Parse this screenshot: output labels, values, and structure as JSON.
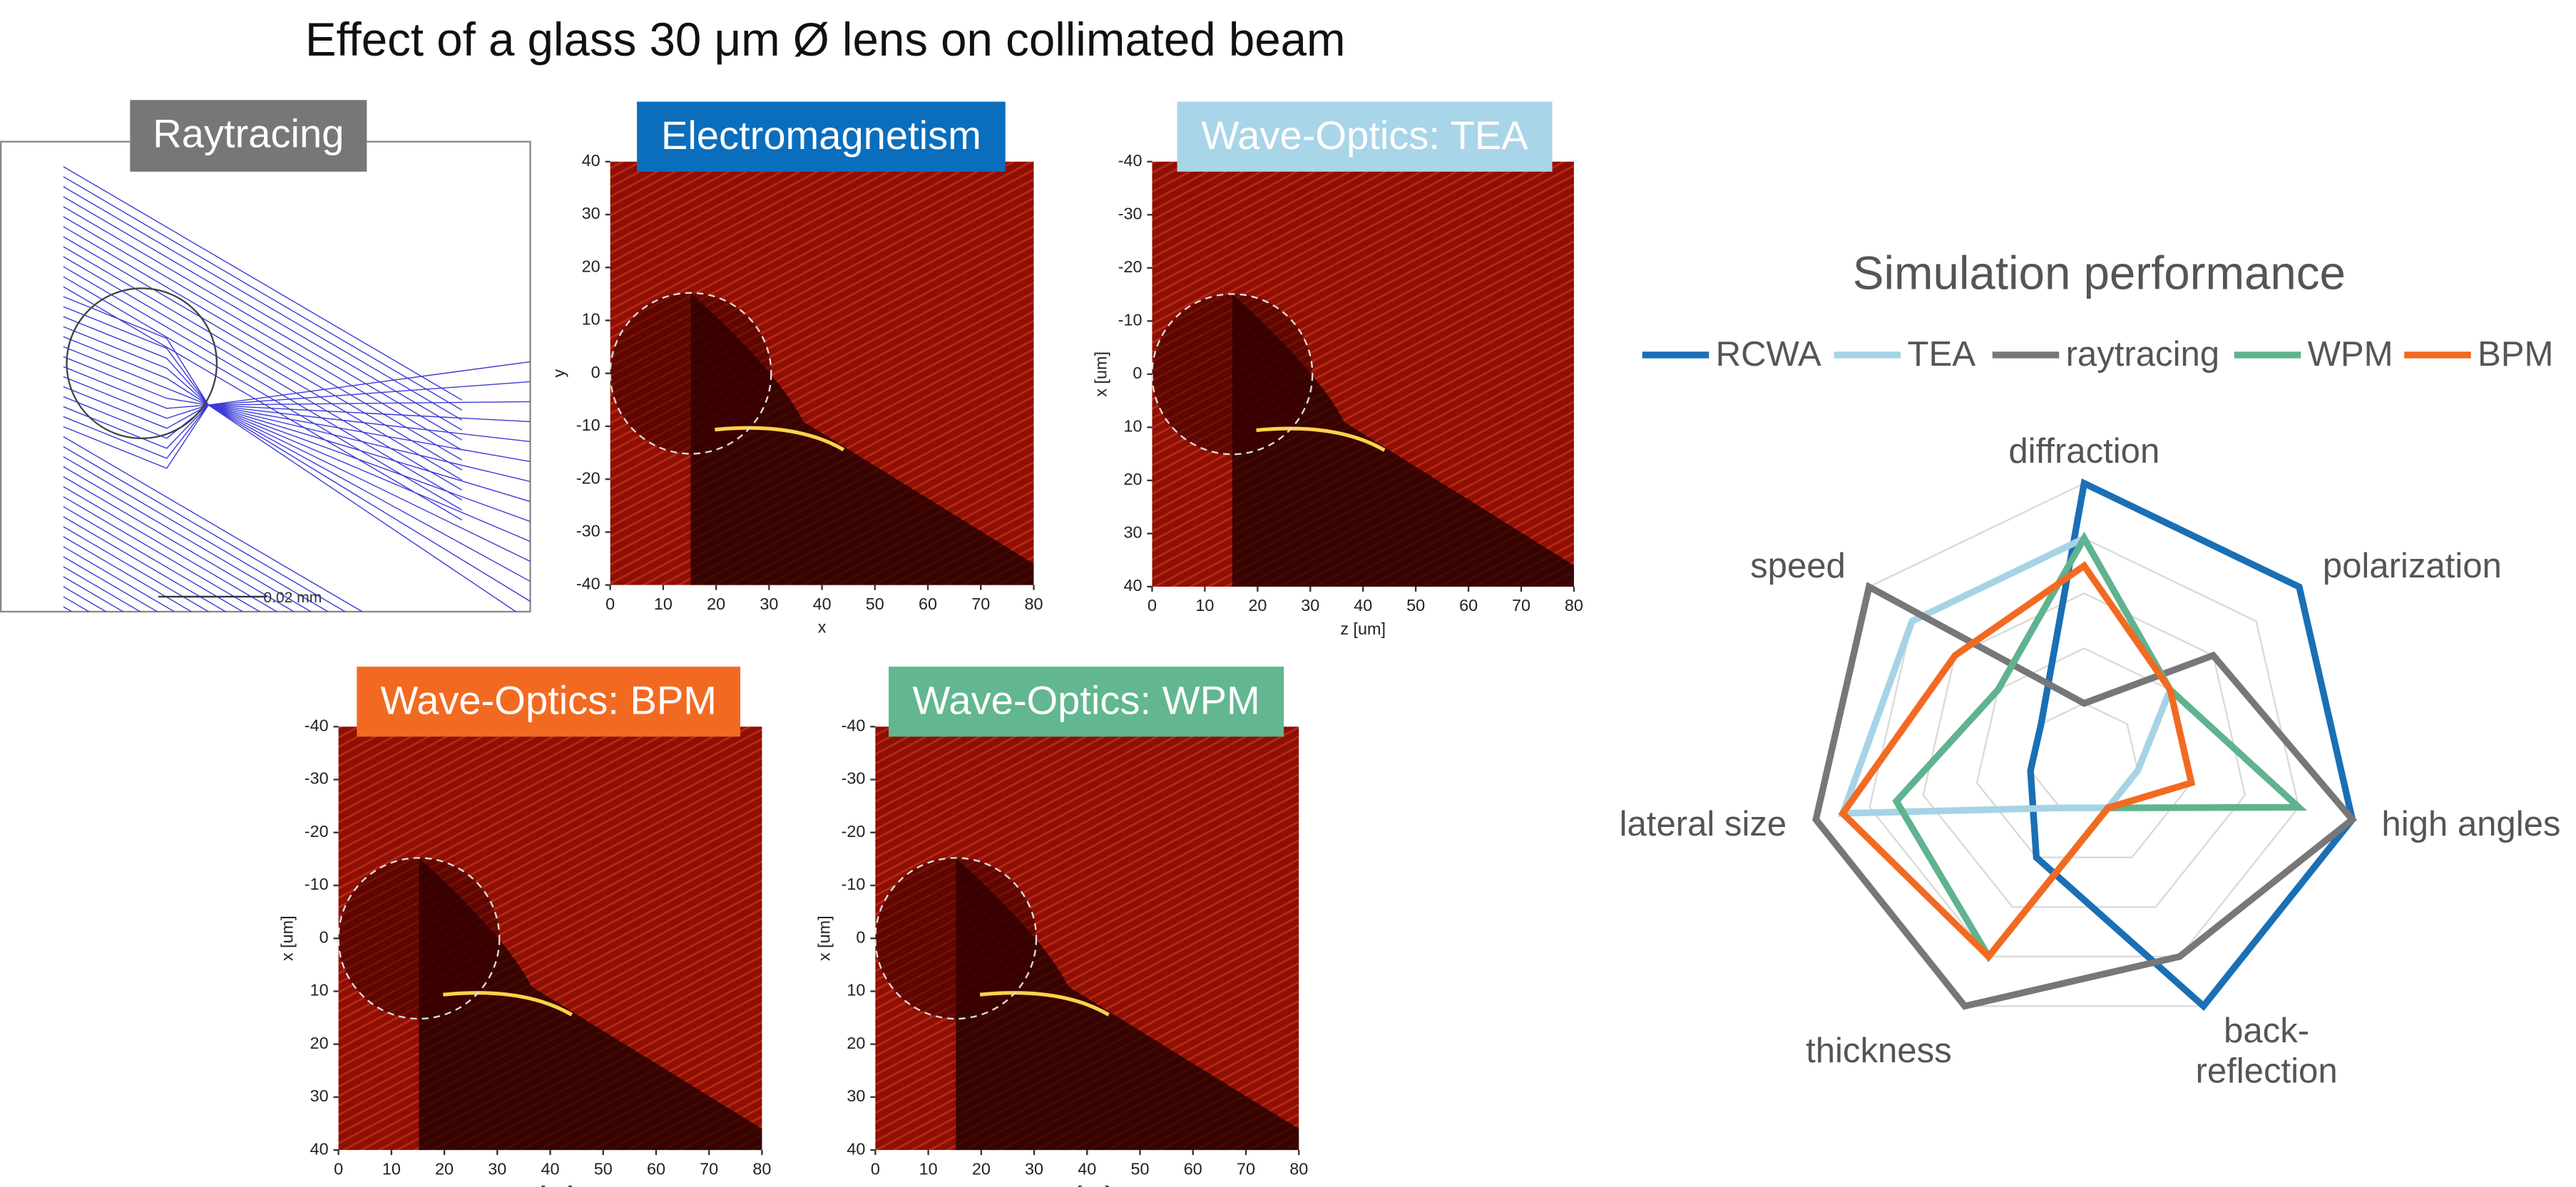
{
  "title": "Effect of a glass 30 μm Ø lens on collimated beam",
  "raytracing": {
    "label": "Raytracing",
    "scale_bar": "0.02 mm"
  },
  "panels": [
    {
      "label": "Electromagnetism",
      "color": "#0a6ebd",
      "xlabel": "x",
      "ylabel": "y",
      "xlim": [
        0,
        80
      ],
      "ylim": [
        -40,
        40
      ],
      "xticks": [
        0,
        10,
        20,
        30,
        40,
        50,
        60,
        70,
        80
      ],
      "yticks": [
        40,
        30,
        20,
        10,
        0,
        -10,
        -20,
        -30,
        -40
      ]
    },
    {
      "label": "Wave-Optics: TEA",
      "color": "#a9d5e8",
      "xlabel": "z [um]",
      "ylabel": "x [um]",
      "xlim": [
        0,
        80
      ],
      "ylim": [
        40,
        -40
      ],
      "xticks": [
        0,
        10,
        20,
        30,
        40,
        50,
        60,
        70,
        80
      ],
      "yticks": [
        -40,
        -30,
        -20,
        -10,
        0,
        10,
        20,
        30,
        40
      ]
    },
    {
      "label": "Wave-Optics: BPM",
      "color": "#f26a21",
      "xlabel": "z [um]",
      "ylabel": "x [um]",
      "xlim": [
        0,
        80
      ],
      "ylim": [
        40,
        -40
      ],
      "xticks": [
        0,
        10,
        20,
        30,
        40,
        50,
        60,
        70,
        80
      ],
      "yticks": [
        -40,
        -30,
        -20,
        -10,
        0,
        10,
        20,
        30,
        40
      ]
    },
    {
      "label": "Wave-Optics: WPM",
      "color": "#62b690",
      "xlabel": "z [um]",
      "ylabel": "x [um]",
      "xlim": [
        0,
        80
      ],
      "ylim": [
        40,
        -40
      ],
      "xticks": [
        0,
        10,
        20,
        30,
        40,
        50,
        60,
        70,
        80
      ],
      "yticks": [
        -40,
        -30,
        -20,
        -10,
        0,
        10,
        20,
        30,
        40
      ]
    }
  ],
  "chart_data": {
    "type": "radar",
    "title": "Simulation performance",
    "categories": [
      "diffraction",
      "polarization",
      "high angles",
      "back-reflection",
      "thickness",
      "lateral size",
      "speed"
    ],
    "rlim": [
      0,
      5
    ],
    "rticks": [
      1,
      2,
      3,
      4,
      5
    ],
    "series": [
      {
        "name": "RCWA",
        "color": "#1a6fb5",
        "values": [
          5,
          5,
          5,
          5,
          2,
          1,
          1
        ]
      },
      {
        "name": "TEA",
        "color": "#a6d3e6",
        "values": [
          4,
          2,
          1,
          1,
          1,
          4.5,
          4
        ]
      },
      {
        "name": "raytracing",
        "color": "#777777",
        "values": [
          1,
          3,
          5,
          4,
          5,
          5,
          5
        ]
      },
      {
        "name": "WPM",
        "color": "#5fb38e",
        "values": [
          4,
          2,
          4,
          1,
          4,
          3.5,
          2
        ]
      },
      {
        "name": "BPM",
        "color": "#f26a21",
        "values": [
          3.5,
          2,
          2,
          1,
          4,
          4.5,
          3
        ]
      }
    ]
  }
}
